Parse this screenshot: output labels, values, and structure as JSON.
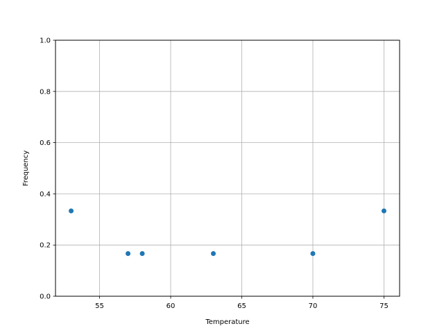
{
  "chart_data": {
    "type": "scatter",
    "title": "",
    "xlabel": "Temperature",
    "ylabel": "Frequency",
    "x": [
      53,
      57,
      58,
      63,
      70,
      75
    ],
    "y": [
      0.3333,
      0.1667,
      0.1667,
      0.1667,
      0.1667,
      0.3333
    ],
    "xlim": [
      51.9,
      76.1
    ],
    "ylim": [
      0,
      1
    ],
    "xticks": [
      55,
      60,
      65,
      70,
      75
    ],
    "xtick_labels": [
      "55",
      "60",
      "65",
      "70",
      "75"
    ],
    "yticks": [
      0,
      0.2,
      0.4,
      0.6,
      0.8,
      1.0
    ],
    "ytick_labels": [
      "0.0",
      "0.2",
      "0.4",
      "0.6",
      "0.8",
      "1.0"
    ],
    "grid": true,
    "color": "#1f77b4",
    "grid_color": "#b0b0b0"
  }
}
